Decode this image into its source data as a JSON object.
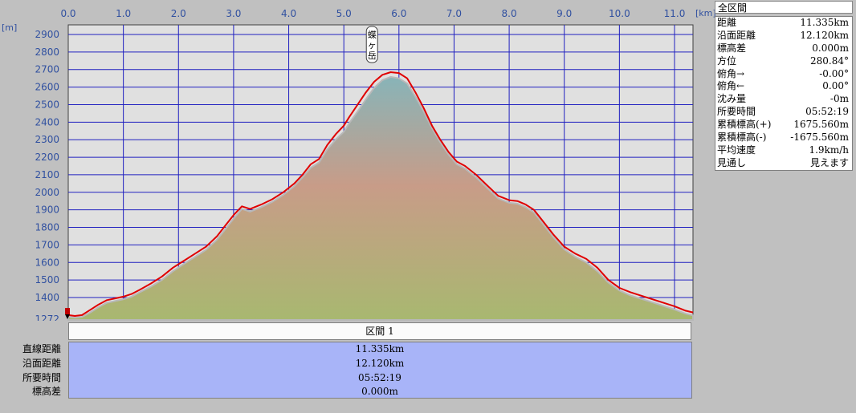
{
  "chart_data": {
    "type": "area",
    "x_unit": "[km]",
    "y_unit": "[m]",
    "xlim": [
      0,
      11.335
    ],
    "ylim": [
      1272,
      2975
    ],
    "x_ticks": [
      "0.0",
      "1.0",
      "2.0",
      "3.0",
      "4.0",
      "5.0",
      "6.0",
      "7.0",
      "8.0",
      "9.0",
      "10.0",
      "11.0"
    ],
    "y_ticks": [
      "1272",
      "1400",
      "1500",
      "1600",
      "1700",
      "1800",
      "1900",
      "2000",
      "2100",
      "2200",
      "2300",
      "2400",
      "2500",
      "2600",
      "2700",
      "2800",
      "2900"
    ],
    "annotations": [
      {
        "text": "蝶ヶ岳",
        "x": 5.7,
        "y": 2677
      }
    ],
    "series": [
      {
        "color": "#e00000",
        "x": [
          0,
          0.12,
          0.25,
          0.4,
          0.55,
          0.7,
          0.85,
          1.0,
          1.15,
          1.3,
          1.5,
          1.7,
          1.9,
          2.1,
          2.3,
          2.5,
          2.7,
          2.85,
          3.0,
          3.15,
          3.3,
          3.5,
          3.7,
          3.9,
          4.1,
          4.25,
          4.4,
          4.55,
          4.7,
          4.85,
          5.0,
          5.1,
          5.25,
          5.4,
          5.55,
          5.7,
          5.85,
          6.0,
          6.15,
          6.3,
          6.45,
          6.6,
          6.75,
          6.9,
          7.05,
          7.2,
          7.4,
          7.6,
          7.8,
          8.0,
          8.15,
          8.3,
          8.45,
          8.6,
          8.8,
          9.0,
          9.2,
          9.4,
          9.6,
          9.8,
          10.0,
          10.2,
          10.4,
          10.6,
          10.8,
          11.0,
          11.2,
          11.335
        ],
        "values": [
          1300,
          1295,
          1300,
          1330,
          1360,
          1385,
          1395,
          1405,
          1420,
          1445,
          1480,
          1520,
          1570,
          1610,
          1650,
          1690,
          1750,
          1810,
          1870,
          1920,
          1905,
          1930,
          1960,
          2000,
          2050,
          2100,
          2160,
          2190,
          2270,
          2330,
          2380,
          2430,
          2500,
          2570,
          2630,
          2670,
          2685,
          2680,
          2650,
          2570,
          2480,
          2380,
          2300,
          2230,
          2175,
          2150,
          2100,
          2040,
          1980,
          1955,
          1950,
          1930,
          1900,
          1840,
          1760,
          1690,
          1650,
          1620,
          1570,
          1500,
          1455,
          1430,
          1410,
          1390,
          1370,
          1350,
          1325,
          1315
        ]
      },
      {
        "name": "terrain",
        "color": "#b0b0b0",
        "x": [
          0,
          0.12,
          0.25,
          0.4,
          0.55,
          0.7,
          0.85,
          1.0,
          1.15,
          1.3,
          1.5,
          1.7,
          1.9,
          2.1,
          2.3,
          2.5,
          2.7,
          2.85,
          3.0,
          3.15,
          3.3,
          3.5,
          3.7,
          3.9,
          4.1,
          4.25,
          4.4,
          4.55,
          4.7,
          4.85,
          5.0,
          5.1,
          5.25,
          5.4,
          5.55,
          5.7,
          5.85,
          6.0,
          6.15,
          6.3,
          6.45,
          6.6,
          6.75,
          6.9,
          7.05,
          7.2,
          7.4,
          7.6,
          7.8,
          8.0,
          8.15,
          8.3,
          8.45,
          8.6,
          8.8,
          9.0,
          9.2,
          9.4,
          9.6,
          9.8,
          10.0,
          10.2,
          10.4,
          10.6,
          10.8,
          11.0,
          11.2,
          11.335
        ],
        "values": [
          1290,
          1285,
          1290,
          1315,
          1345,
          1370,
          1380,
          1390,
          1405,
          1430,
          1462,
          1500,
          1550,
          1592,
          1632,
          1672,
          1730,
          1790,
          1850,
          1905,
          1890,
          1915,
          1945,
          1985,
          2035,
          2085,
          2140,
          2170,
          2245,
          2300,
          2345,
          2395,
          2460,
          2530,
          2595,
          2640,
          2658,
          2650,
          2620,
          2545,
          2460,
          2365,
          2285,
          2215,
          2160,
          2135,
          2085,
          2025,
          1965,
          1940,
          1935,
          1915,
          1885,
          1825,
          1745,
          1675,
          1632,
          1600,
          1550,
          1485,
          1440,
          1412,
          1392,
          1372,
          1352,
          1332,
          1308,
          1298
        ]
      }
    ]
  },
  "info_panel": {
    "title": "全区間",
    "rows": [
      {
        "label": "距離",
        "value": "11.335km"
      },
      {
        "label": "沿面距離",
        "value": "12.120km"
      },
      {
        "label": "標高差",
        "value": "0.000m"
      },
      {
        "label": "方位",
        "value": "280.84°"
      },
      {
        "label": "俯角→",
        "value": "-0.00°"
      },
      {
        "label": "俯角←",
        "value": "0.00°"
      },
      {
        "label": "沈み量",
        "value": "-0m"
      },
      {
        "label": "所要時間",
        "value": "05:52:19"
      },
      {
        "label": "累積標高(+)",
        "value": "1675.560m"
      },
      {
        "label": "累積標高(-)",
        "value": "-1675.560m"
      },
      {
        "label": "平均速度",
        "value": "1.9km/h"
      },
      {
        "label": "見通し",
        "value": "見えます"
      }
    ]
  },
  "segment_table": {
    "header": "区間 1",
    "rows": [
      {
        "label": "直線距離",
        "value": "11.335km"
      },
      {
        "label": "沿面距離",
        "value": "12.120km"
      },
      {
        "label": "所要時間",
        "value": "05:52:19"
      },
      {
        "label": "標高差",
        "value": "0.000m"
      }
    ]
  },
  "colors": {
    "plot_bg": "#e0e0e0",
    "grid": "#2020c0",
    "route": "#e00000",
    "terrain_top": "#90b0b8",
    "terrain_mid": "#c8a088",
    "terrain_bottom": "#a8b870",
    "segment_fill": "#a8b4f8"
  }
}
